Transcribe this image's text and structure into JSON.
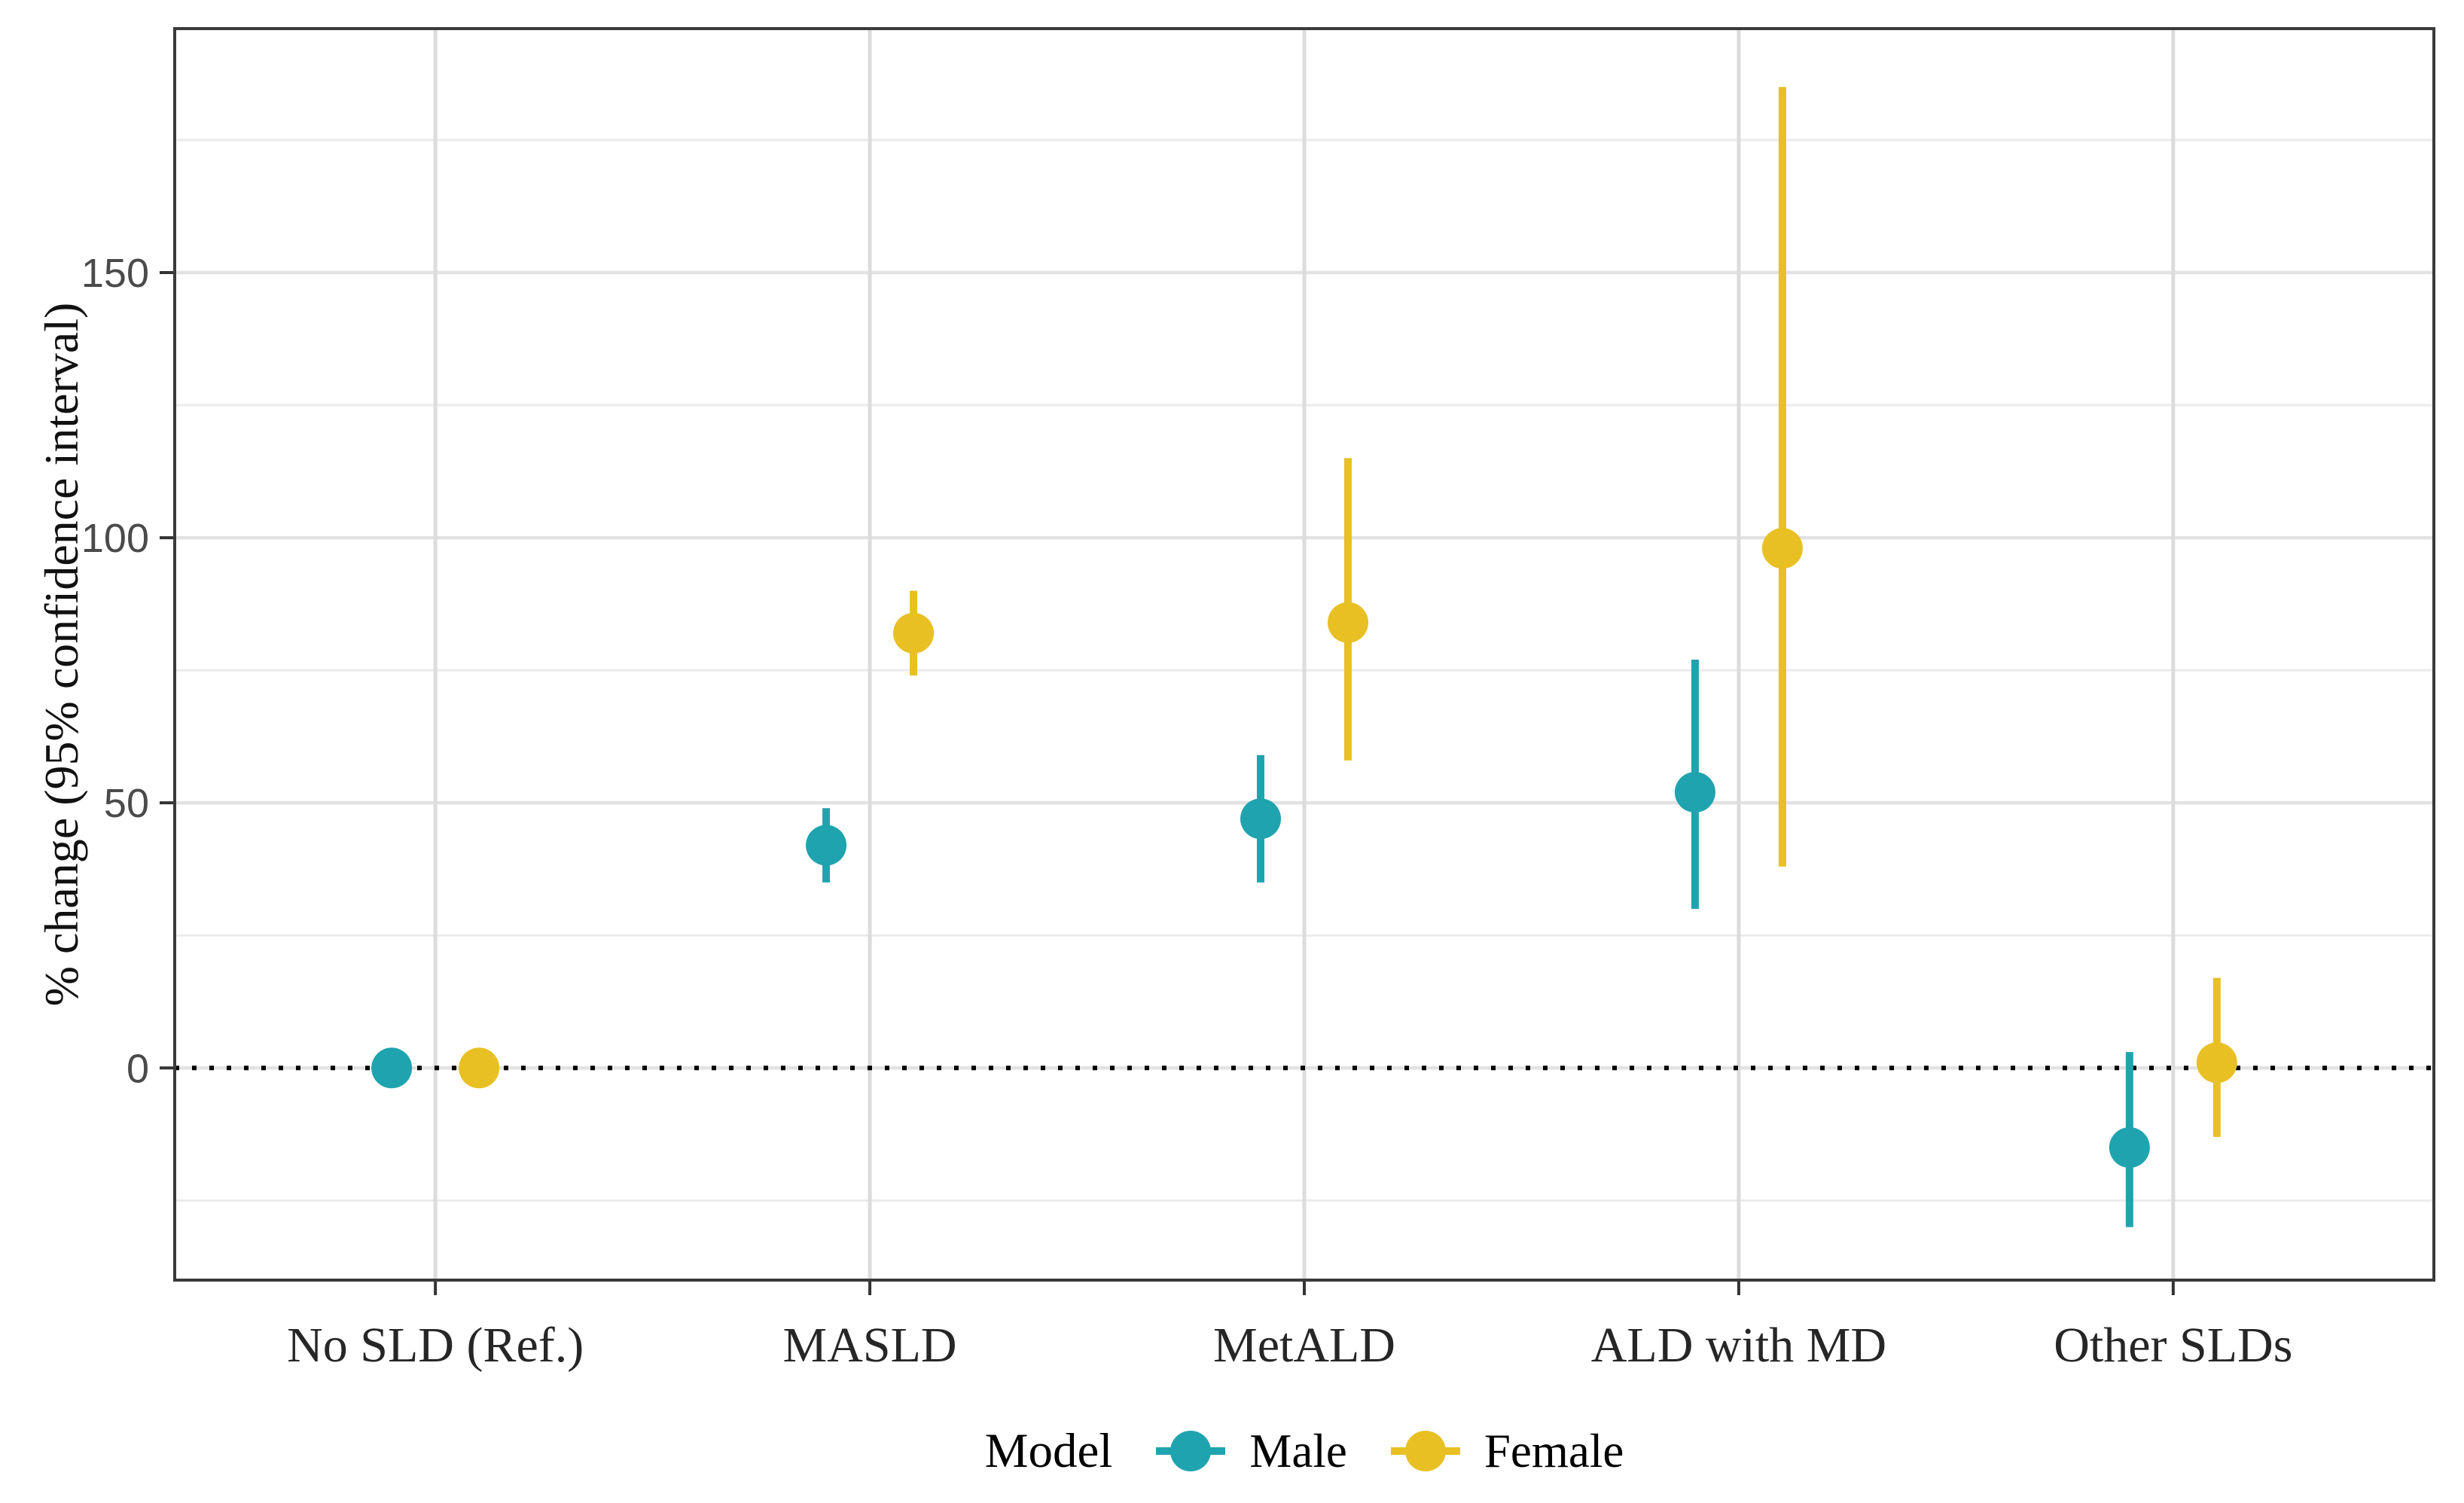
{
  "figure_title": "",
  "chart_data": {
    "type": "pointrange",
    "title": "",
    "xlabel": "",
    "ylabel": "% change (95% confidence interval)",
    "categories": [
      "No SLD (Ref.)",
      "MASLD",
      "MetALD",
      "ALD with MD",
      "Other SLDs"
    ],
    "series": [
      {
        "name": "Male",
        "color": "#1FA4AF",
        "points": [
          {
            "y": 0,
            "lo": 0,
            "hi": 0
          },
          {
            "y": 42,
            "lo": 35,
            "hi": 49
          },
          {
            "y": 47,
            "lo": 35,
            "hi": 59
          },
          {
            "y": 52,
            "lo": 30,
            "hi": 77
          },
          {
            "y": -15,
            "lo": -30,
            "hi": 3
          }
        ]
      },
      {
        "name": "Female",
        "color": "#E8C024",
        "points": [
          {
            "y": 0,
            "lo": 0,
            "hi": 0
          },
          {
            "y": 82,
            "lo": 74,
            "hi": 90
          },
          {
            "y": 84,
            "lo": 58,
            "hi": 115
          },
          {
            "y": 98,
            "lo": 38,
            "hi": 185
          },
          {
            "y": 1,
            "lo": -13,
            "hi": 17
          }
        ]
      }
    ],
    "y_ticks": [
      0,
      50,
      100,
      150
    ],
    "ylim": [
      -40,
      196
    ],
    "grid_minor_step": 25,
    "ref_line_y": 0,
    "legend_title": "Model",
    "legend_position": "bottom",
    "grid": true,
    "colors": {
      "panel_border": "#3a3a3a",
      "grid_major": "#e2e2e2",
      "grid_minor": "#ebebeb",
      "ref_line": "#000000",
      "tick": "#333333",
      "tick_label": "#4a4a4a",
      "category_label": "#262626",
      "axis_title": "#111111"
    }
  }
}
